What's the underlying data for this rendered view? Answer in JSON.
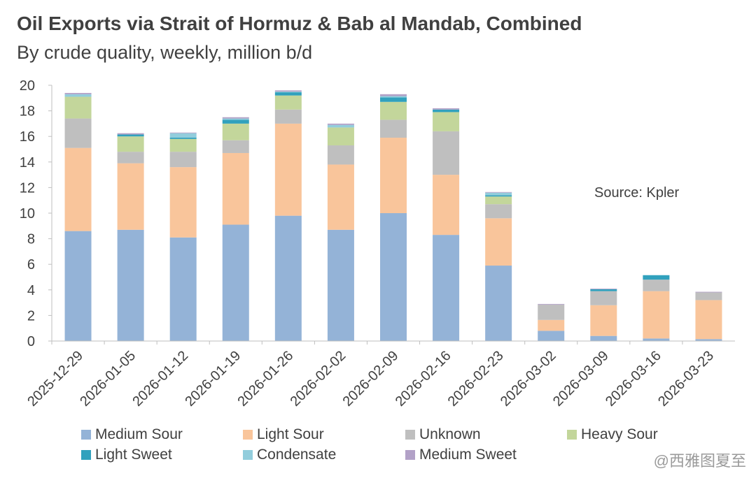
{
  "chart_data": {
    "type": "bar",
    "stacked": true,
    "title": "Oil Exports via Strait of Hormuz & Bab al Mandab, Combined",
    "subtitle": "By crude quality, weekly, million b/d",
    "annotation": "Source: Kpler",
    "xlabel": "",
    "ylabel": "",
    "ylim": [
      0,
      20
    ],
    "yticks": [
      "0",
      "2",
      "4",
      "6",
      "8",
      "10",
      "12",
      "14",
      "16",
      "18",
      "20"
    ],
    "categories": [
      "2025-12-29",
      "2026-01-05",
      "2026-01-12",
      "2026-01-19",
      "2026-01-26",
      "2026-02-02",
      "2026-02-09",
      "2026-02-16",
      "2026-02-23",
      "2026-03-02",
      "2026-03-09",
      "2026-03-16",
      "2026-03-23"
    ],
    "series": [
      {
        "name": "Medium Sour",
        "color": "#94B3D7",
        "values": [
          8.6,
          8.7,
          8.1,
          9.1,
          9.8,
          8.7,
          10.0,
          8.3,
          5.9,
          0.8,
          0.4,
          0.2,
          0.15
        ]
      },
      {
        "name": "Light Sour",
        "color": "#F9C59B",
        "values": [
          6.5,
          5.2,
          5.5,
          5.6,
          7.2,
          5.1,
          5.9,
          4.7,
          3.7,
          0.85,
          2.4,
          3.7,
          3.05
        ]
      },
      {
        "name": "Unknown",
        "color": "#BFBFBF",
        "values": [
          2.3,
          0.9,
          1.2,
          1.0,
          1.1,
          1.5,
          1.4,
          3.4,
          1.1,
          1.2,
          1.1,
          0.9,
          0.6
        ]
      },
      {
        "name": "Heavy Sour",
        "color": "#C3D69B",
        "values": [
          1.7,
          1.2,
          1.0,
          1.3,
          1.1,
          1.4,
          1.4,
          1.5,
          0.6,
          0.0,
          0.0,
          0.0,
          0.0
        ]
      },
      {
        "name": "Light Sweet",
        "color": "#31A1BD",
        "values": [
          0.0,
          0.15,
          0.1,
          0.3,
          0.25,
          0.0,
          0.35,
          0.2,
          0.1,
          0.0,
          0.15,
          0.35,
          0.0
        ]
      },
      {
        "name": "Condensate",
        "color": "#92CDDC",
        "values": [
          0.2,
          0.0,
          0.35,
          0.1,
          0.05,
          0.2,
          0.1,
          0.0,
          0.2,
          0.0,
          0.0,
          0.0,
          0.0
        ]
      },
      {
        "name": "Medium Sweet",
        "color": "#B2A1C7",
        "values": [
          0.1,
          0.1,
          0.05,
          0.1,
          0.1,
          0.1,
          0.15,
          0.1,
          0.05,
          0.05,
          0.05,
          0.0,
          0.05
        ]
      }
    ]
  },
  "watermark": "@西雅图夏至"
}
